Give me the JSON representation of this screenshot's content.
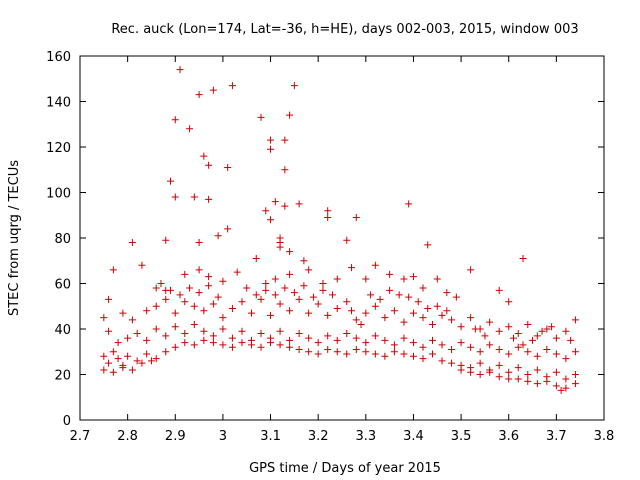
{
  "chart_data": {
    "type": "scatter",
    "title": "Rec. auck (Lon=174, Lat=-36, h=HE), days 002-003, 2015, window 003",
    "xlabel": "GPS time / Days of year 2015",
    "ylabel": "STEC from uqrg / TECUs",
    "xlim": [
      2.7,
      3.8
    ],
    "ylim": [
      0,
      160
    ],
    "xticks": [
      "2.7",
      "2.8",
      "2.9",
      "3",
      "3.1",
      "3.2",
      "3.3",
      "3.4",
      "3.5",
      "3.6",
      "3.7",
      "3.8"
    ],
    "xtick_values": [
      2.7,
      2.8,
      2.9,
      3.0,
      3.1,
      3.2,
      3.3,
      3.4,
      3.5,
      3.6,
      3.7,
      3.8
    ],
    "yticks": [
      "0",
      "20",
      "40",
      "60",
      "80",
      "100",
      "120",
      "140",
      "160"
    ],
    "ytick_values": [
      0,
      20,
      40,
      60,
      80,
      100,
      120,
      140,
      160
    ],
    "marker": "+",
    "color": "#cc0000",
    "series": [
      {
        "name": "STEC",
        "points": [
          [
            2.91,
            154
          ],
          [
            2.93,
            128
          ],
          [
            2.95,
            143
          ],
          [
            2.98,
            145
          ],
          [
            3.02,
            147
          ],
          [
            2.9,
            132
          ],
          [
            3.08,
            133
          ],
          [
            3.1,
            123
          ],
          [
            3.1,
            119
          ],
          [
            3.13,
            123
          ],
          [
            3.14,
            134
          ],
          [
            3.15,
            147
          ],
          [
            3.13,
            110
          ],
          [
            2.96,
            116
          ],
          [
            2.97,
            112
          ],
          [
            3.01,
            111
          ],
          [
            2.89,
            105
          ],
          [
            2.9,
            98
          ],
          [
            2.94,
            98
          ],
          [
            2.97,
            97
          ],
          [
            3.09,
            92
          ],
          [
            3.13,
            94
          ],
          [
            3.16,
            95
          ],
          [
            3.1,
            88
          ],
          [
            3.11,
            96
          ],
          [
            3.22,
            92
          ],
          [
            3.22,
            89
          ],
          [
            3.28,
            89
          ],
          [
            3.39,
            95
          ],
          [
            2.81,
            78
          ],
          [
            2.88,
            79
          ],
          [
            2.95,
            78
          ],
          [
            2.99,
            81
          ],
          [
            3.01,
            84
          ],
          [
            3.12,
            80
          ],
          [
            3.12,
            78
          ],
          [
            3.12,
            76
          ],
          [
            3.14,
            74
          ],
          [
            3.17,
            70
          ],
          [
            3.26,
            79
          ],
          [
            3.43,
            77
          ],
          [
            3.63,
            71
          ],
          [
            2.77,
            66
          ],
          [
            2.83,
            68
          ],
          [
            2.86,
            58
          ],
          [
            2.88,
            57
          ],
          [
            2.92,
            64
          ],
          [
            2.95,
            66
          ],
          [
            2.97,
            63
          ],
          [
            3.0,
            61
          ],
          [
            3.03,
            65
          ],
          [
            3.07,
            71
          ],
          [
            3.09,
            60
          ],
          [
            3.11,
            62
          ],
          [
            3.14,
            64
          ],
          [
            3.18,
            66
          ],
          [
            3.21,
            60
          ],
          [
            3.24,
            62
          ],
          [
            3.27,
            67
          ],
          [
            3.3,
            62
          ],
          [
            3.32,
            68
          ],
          [
            3.35,
            64
          ],
          [
            3.38,
            62
          ],
          [
            3.4,
            63
          ],
          [
            3.42,
            58
          ],
          [
            3.45,
            62
          ],
          [
            3.47,
            56
          ],
          [
            3.49,
            54
          ],
          [
            3.52,
            66
          ],
          [
            3.58,
            57
          ],
          [
            3.6,
            52
          ],
          [
            2.76,
            53
          ],
          [
            2.79,
            47
          ],
          [
            2.81,
            44
          ],
          [
            2.84,
            48
          ],
          [
            2.86,
            50
          ],
          [
            2.88,
            53
          ],
          [
            2.9,
            47
          ],
          [
            2.92,
            52
          ],
          [
            2.94,
            50
          ],
          [
            2.96,
            48
          ],
          [
            2.98,
            51
          ],
          [
            3.0,
            45
          ],
          [
            3.02,
            49
          ],
          [
            3.04,
            52
          ],
          [
            3.06,
            47
          ],
          [
            3.08,
            53
          ],
          [
            3.1,
            46
          ],
          [
            3.12,
            51
          ],
          [
            3.14,
            48
          ],
          [
            3.16,
            53
          ],
          [
            3.18,
            47
          ],
          [
            3.2,
            51
          ],
          [
            3.22,
            46
          ],
          [
            3.24,
            49
          ],
          [
            3.26,
            52
          ],
          [
            3.28,
            44
          ],
          [
            3.3,
            47
          ],
          [
            3.32,
            50
          ],
          [
            3.34,
            45
          ],
          [
            3.36,
            48
          ],
          [
            3.38,
            43
          ],
          [
            3.4,
            47
          ],
          [
            3.42,
            45
          ],
          [
            3.44,
            42
          ],
          [
            3.46,
            46
          ],
          [
            3.48,
            44
          ],
          [
            3.5,
            41
          ],
          [
            3.52,
            45
          ],
          [
            3.54,
            40
          ],
          [
            3.56,
            43
          ],
          [
            3.58,
            39
          ],
          [
            3.6,
            41
          ],
          [
            3.62,
            38
          ],
          [
            3.64,
            42
          ],
          [
            3.66,
            37
          ],
          [
            3.68,
            40
          ],
          [
            3.7,
            36
          ],
          [
            3.72,
            39
          ],
          [
            3.74,
            44
          ],
          [
            2.75,
            45
          ],
          [
            2.76,
            39
          ],
          [
            2.78,
            34
          ],
          [
            2.8,
            36
          ],
          [
            2.82,
            38
          ],
          [
            2.84,
            35
          ],
          [
            2.86,
            40
          ],
          [
            2.88,
            37
          ],
          [
            2.9,
            41
          ],
          [
            2.92,
            38
          ],
          [
            2.94,
            42
          ],
          [
            2.96,
            39
          ],
          [
            2.98,
            37
          ],
          [
            3.0,
            40
          ],
          [
            3.02,
            36
          ],
          [
            3.04,
            39
          ],
          [
            3.06,
            35
          ],
          [
            3.08,
            38
          ],
          [
            3.1,
            36
          ],
          [
            3.12,
            39
          ],
          [
            3.14,
            35
          ],
          [
            3.16,
            38
          ],
          [
            3.18,
            36
          ],
          [
            3.2,
            34
          ],
          [
            3.22,
            37
          ],
          [
            3.24,
            35
          ],
          [
            3.26,
            38
          ],
          [
            3.28,
            36
          ],
          [
            3.3,
            34
          ],
          [
            3.32,
            37
          ],
          [
            3.34,
            35
          ],
          [
            3.36,
            33
          ],
          [
            3.38,
            36
          ],
          [
            3.4,
            34
          ],
          [
            3.42,
            32
          ],
          [
            3.44,
            35
          ],
          [
            3.46,
            33
          ],
          [
            3.48,
            31
          ],
          [
            3.5,
            34
          ],
          [
            3.52,
            32
          ],
          [
            3.54,
            30
          ],
          [
            3.56,
            33
          ],
          [
            3.58,
            31
          ],
          [
            3.6,
            29
          ],
          [
            3.62,
            32
          ],
          [
            3.64,
            30
          ],
          [
            3.66,
            28
          ],
          [
            3.68,
            31
          ],
          [
            3.7,
            29
          ],
          [
            3.72,
            27
          ],
          [
            3.74,
            30
          ],
          [
            2.75,
            28
          ],
          [
            2.76,
            25
          ],
          [
            2.77,
            30
          ],
          [
            2.78,
            27
          ],
          [
            2.79,
            24
          ],
          [
            2.8,
            28
          ],
          [
            2.82,
            26
          ],
          [
            2.84,
            29
          ],
          [
            2.86,
            27
          ],
          [
            2.88,
            30
          ],
          [
            2.9,
            32
          ],
          [
            2.92,
            34
          ],
          [
            2.94,
            33
          ],
          [
            2.96,
            35
          ],
          [
            2.98,
            34
          ],
          [
            3.0,
            33
          ],
          [
            3.02,
            32
          ],
          [
            3.04,
            34
          ],
          [
            3.06,
            33
          ],
          [
            3.08,
            32
          ],
          [
            3.1,
            34
          ],
          [
            3.12,
            33
          ],
          [
            3.14,
            32
          ],
          [
            3.16,
            31
          ],
          [
            3.18,
            30
          ],
          [
            3.2,
            29
          ],
          [
            3.22,
            31
          ],
          [
            3.24,
            30
          ],
          [
            3.26,
            29
          ],
          [
            3.28,
            31
          ],
          [
            3.3,
            30
          ],
          [
            3.32,
            29
          ],
          [
            3.34,
            28
          ],
          [
            3.36,
            30
          ],
          [
            3.38,
            29
          ],
          [
            3.4,
            28
          ],
          [
            3.42,
            27
          ],
          [
            3.44,
            29
          ],
          [
            3.46,
            26
          ],
          [
            3.48,
            25
          ],
          [
            3.5,
            24
          ],
          [
            3.52,
            23
          ],
          [
            3.54,
            25
          ],
          [
            3.56,
            22
          ],
          [
            3.58,
            24
          ],
          [
            3.6,
            21
          ],
          [
            3.62,
            23
          ],
          [
            3.64,
            20
          ],
          [
            3.66,
            22
          ],
          [
            3.68,
            19
          ],
          [
            3.7,
            21
          ],
          [
            3.72,
            18
          ],
          [
            3.74,
            20
          ],
          [
            2.75,
            22
          ],
          [
            2.77,
            21
          ],
          [
            2.79,
            23
          ],
          [
            2.81,
            22
          ],
          [
            2.83,
            25
          ],
          [
            2.85,
            26
          ],
          [
            3.5,
            22
          ],
          [
            3.52,
            21
          ],
          [
            3.54,
            20
          ],
          [
            3.56,
            21
          ],
          [
            3.58,
            19
          ],
          [
            3.6,
            18
          ],
          [
            3.62,
            18
          ],
          [
            3.64,
            17
          ],
          [
            3.66,
            16
          ],
          [
            3.68,
            17
          ],
          [
            3.7,
            15
          ],
          [
            3.72,
            14
          ],
          [
            3.74,
            16
          ],
          [
            3.71,
            13
          ],
          [
            3.45,
            50
          ],
          [
            3.47,
            48
          ],
          [
            3.53,
            40
          ],
          [
            3.55,
            37
          ],
          [
            3.61,
            36
          ],
          [
            3.63,
            33
          ],
          [
            3.65,
            35
          ],
          [
            3.67,
            39
          ],
          [
            3.69,
            41
          ],
          [
            3.73,
            35
          ],
          [
            3.27,
            48
          ],
          [
            3.29,
            42
          ],
          [
            3.31,
            55
          ],
          [
            3.33,
            53
          ],
          [
            3.35,
            57
          ],
          [
            3.37,
            55
          ],
          [
            3.39,
            54
          ],
          [
            3.41,
            52
          ],
          [
            3.43,
            49
          ],
          [
            3.05,
            58
          ],
          [
            3.07,
            55
          ],
          [
            3.09,
            57
          ],
          [
            3.11,
            55
          ],
          [
            3.13,
            58
          ],
          [
            3.15,
            56
          ],
          [
            3.17,
            59
          ],
          [
            3.19,
            54
          ],
          [
            3.21,
            57
          ],
          [
            3.23,
            55
          ],
          [
            2.87,
            60
          ],
          [
            2.89,
            57
          ],
          [
            2.91,
            55
          ],
          [
            2.93,
            58
          ],
          [
            2.95,
            56
          ],
          [
            2.97,
            59
          ],
          [
            2.99,
            54
          ]
        ]
      }
    ]
  }
}
